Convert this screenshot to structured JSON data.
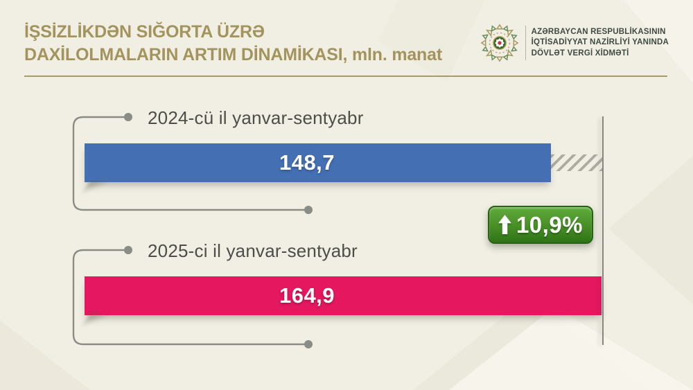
{
  "title": {
    "line1": "İŞSİZLİKDƏN SIĞORTA ÜZRƏ",
    "line2": "DAXİLOLMALARIN ARTIM DİNAMİKASI, mln. manat"
  },
  "org": {
    "line1": "AZƏRBAYCAN RESPUBLİKASININ",
    "line2": "İQTİSADİYYAT NAZİRLİYİ YANINDA",
    "line3": "DÖVLƏT VERGİ XİDMƏTİ",
    "logo_icon": "tax-service-emblem"
  },
  "bars": [
    {
      "label": "2024-cü il yanvar-sentyabr",
      "value": "148,7"
    },
    {
      "label": "2025-ci il yanvar-sentyabr",
      "value": "164,9"
    }
  ],
  "badge": {
    "value": "10,9%",
    "arrow_icon": "up-arrow",
    "color": "#3a7d1c"
  },
  "colors": {
    "background": "#f1efe4",
    "title_gold": "#a3945e",
    "bar_2024_blue": "#4470b3",
    "bar_2025_red": "#e5175e",
    "connector_gray": "#8c8c86"
  },
  "chart_data": {
    "type": "bar",
    "orientation": "horizontal",
    "title": "İşsizlikdən sığorta üzrə daxilolmaların artım dinamikası",
    "unit": "mln. manat",
    "categories": [
      "2024-cü il yanvar-sentyabr",
      "2025-ci il yanvar-sentyabr"
    ],
    "values": [
      148.7,
      164.9
    ],
    "value_labels": [
      "148,7",
      "164,9"
    ],
    "change_percent": "+10,9%",
    "series_colors": [
      "#4470b3",
      "#e5175e"
    ],
    "xlim": [
      0,
      164.9
    ],
    "grid": false,
    "legend": false
  }
}
